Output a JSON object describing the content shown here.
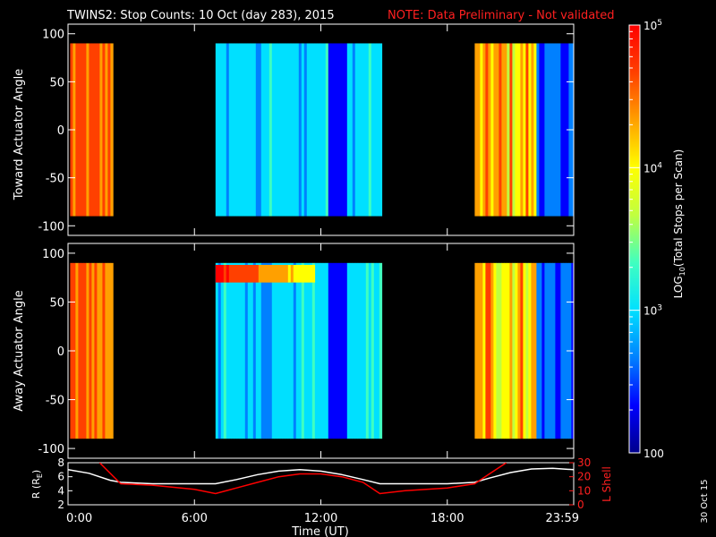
{
  "header": {
    "title": "TWINS2: Stop Counts: 10 Oct (day 283), 2015",
    "note": "NOTE: Data Preliminary - Not validated"
  },
  "footer": {
    "date_stamp": "30 Oct 15"
  },
  "chart_data": [
    {
      "type": "heatmap",
      "ylabel": "Toward Actuator Angle",
      "ylim": [
        -110,
        110
      ],
      "yticks": [
        100,
        50,
        0,
        -50,
        -100
      ],
      "data_ylim": [
        -90,
        90
      ],
      "xlim_hours": [
        0,
        24
      ],
      "xticks": [
        "0:00",
        "6:00",
        "12:00",
        "18:00",
        "23:59"
      ],
      "data_intervals_hours": [
        {
          "start": 0.1,
          "end": 2.1,
          "level": "high"
        },
        {
          "start": 7.0,
          "end": 14.8,
          "level": "low"
        },
        {
          "start": 19.3,
          "end": 24.0,
          "level": "mixed"
        }
      ]
    },
    {
      "type": "heatmap",
      "ylabel": "Away Actuator Angle",
      "ylim": [
        -110,
        110
      ],
      "yticks": [
        100,
        50,
        0,
        -50,
        -100
      ],
      "data_ylim": [
        -90,
        90
      ],
      "xlim_hours": [
        0,
        24
      ],
      "xticks": [
        "0:00",
        "6:00",
        "12:00",
        "18:00",
        "23:59"
      ],
      "data_intervals_hours": [
        {
          "start": 0.1,
          "end": 2.1,
          "level": "high"
        },
        {
          "start": 7.0,
          "end": 14.8,
          "level": "low"
        },
        {
          "start": 19.3,
          "end": 24.0,
          "level": "mixed"
        }
      ]
    },
    {
      "type": "line",
      "xlabel": "Time (UT)",
      "ylabel": "R (R",
      "ylabel_sub": "E",
      "ylabel_tail": ")",
      "y2label": "L Shell",
      "xlim_hours": [
        0,
        24
      ],
      "ylim": [
        2,
        8
      ],
      "yticks": [
        "8",
        "6",
        "4",
        "2"
      ],
      "y2lim": [
        0,
        30
      ],
      "y2ticks": [
        "30",
        "20",
        "10",
        "0"
      ],
      "xticks": [
        "0:00",
        "6:00",
        "12:00",
        "18:00",
        "23:59"
      ],
      "series": [
        {
          "name": "R",
          "color": "#ffffff",
          "x": [
            0,
            1,
            2,
            2.5,
            4,
            6,
            7,
            8,
            9,
            10,
            11,
            12,
            13,
            14,
            14.8,
            16,
            18,
            19.3,
            20,
            21,
            22,
            23,
            24
          ],
          "y": [
            7.0,
            6.5,
            5.5,
            5.2,
            5.0,
            5.0,
            5.0,
            5.6,
            6.3,
            6.8,
            7.0,
            6.8,
            6.3,
            5.6,
            5.0,
            5.0,
            5.0,
            5.2,
            5.8,
            6.6,
            7.1,
            7.2,
            7.0
          ]
        },
        {
          "name": "L Shell",
          "color": "#ff0000",
          "x": [
            1.5,
            2.5,
            4,
            6,
            7,
            8,
            9,
            10,
            11,
            12,
            13,
            14,
            14.8,
            16,
            18,
            19.3,
            20,
            20.8
          ],
          "y": [
            30,
            15,
            14,
            11,
            8,
            12,
            16,
            20,
            22,
            22,
            20,
            16,
            8,
            10,
            12,
            15,
            22,
            30
          ]
        }
      ]
    }
  ],
  "colorbar": {
    "label": "LOG",
    "label_sub": "10",
    "label_tail": "(Total Stops per Scan)",
    "tick_labels": [
      {
        "base": "10",
        "exp": "5",
        "value": 100000
      },
      {
        "base": "10",
        "exp": "4",
        "value": 10000
      },
      {
        "base": "10",
        "exp": "3",
        "value": 1000
      },
      {
        "base": "100",
        "exp": "",
        "value": 100
      }
    ],
    "range": [
      100,
      100000
    ],
    "scale": "log",
    "colors": [
      "#00008b",
      "#0000ff",
      "#0080ff",
      "#00e0ff",
      "#40ffc0",
      "#c0ff40",
      "#ffff00",
      "#ffa000",
      "#ff4000",
      "#ff0000"
    ]
  }
}
